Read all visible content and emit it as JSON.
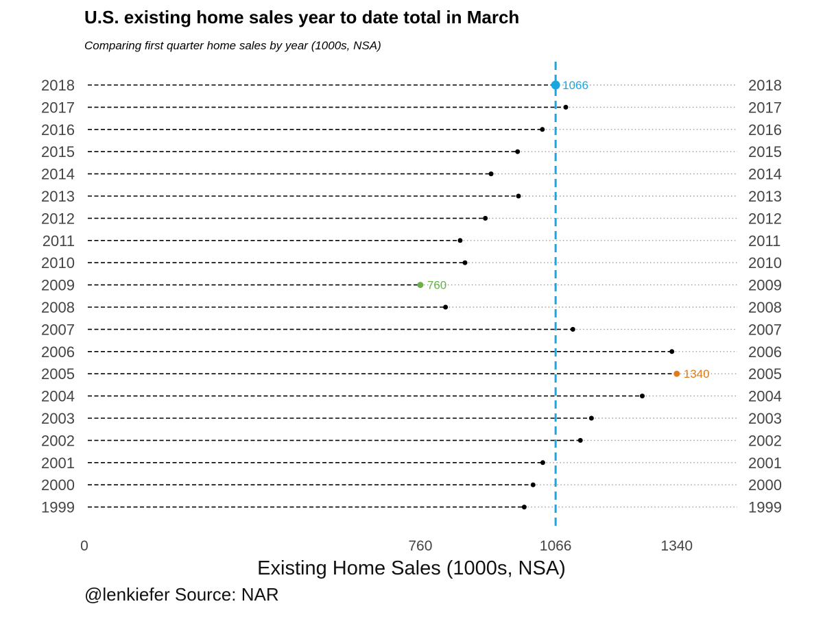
{
  "title": "U.S. existing home sales year to date total in March",
  "subtitle": "Comparing first quarter home sales by year (1000s, NSA)",
  "caption": "@lenkiefer Source: NAR",
  "colors": {
    "reference": "#1aa7e0",
    "low": "#6ab04c",
    "high": "#e07b1a",
    "default": "#000000"
  },
  "chart_data": {
    "type": "dot",
    "title": "U.S. existing home sales year to date total in March",
    "subtitle": "Comparing first quarter home sales by year (1000s, NSA)",
    "xlabel": "Existing Home Sales (1000s, NSA)",
    "ylabel": "",
    "xlim": [
      0,
      1480
    ],
    "xticks": [
      0,
      760,
      1066,
      1340
    ],
    "reference_line": 1066,
    "grid": false,
    "categories": [
      "2018",
      "2017",
      "2016",
      "2015",
      "2014",
      "2013",
      "2012",
      "2011",
      "2010",
      "2009",
      "2008",
      "2007",
      "2006",
      "2005",
      "2004",
      "2003",
      "2002",
      "2001",
      "2000",
      "1999"
    ],
    "values": [
      1066,
      1089,
      1036,
      980,
      920,
      982,
      907,
      850,
      861,
      760,
      817,
      1105,
      1329,
      1340,
      1262,
      1147,
      1122,
      1037,
      1015,
      995
    ],
    "highlights": [
      {
        "category": "2018",
        "label": "1066",
        "color": "#1aa7e0"
      },
      {
        "category": "2009",
        "label": "760",
        "color": "#6ab04c"
      },
      {
        "category": "2005",
        "label": "1340",
        "color": "#e07b1a"
      }
    ]
  }
}
